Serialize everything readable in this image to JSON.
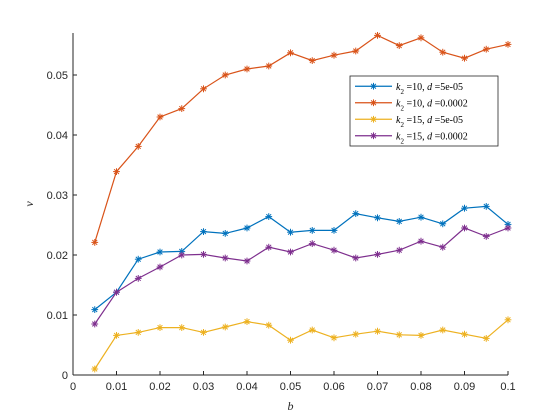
{
  "chart_data": {
    "type": "line",
    "xlabel": "b",
    "ylabel": "v",
    "xlim": [
      0,
      0.1
    ],
    "ylim": [
      0,
      0.057
    ],
    "grid": false,
    "legend_placement": "top-right",
    "x": [
      0.005,
      0.01,
      0.015,
      0.02,
      0.025,
      0.03,
      0.035,
      0.04,
      0.045,
      0.05,
      0.055,
      0.06,
      0.065,
      0.07,
      0.075,
      0.08,
      0.085,
      0.09,
      0.095,
      0.1
    ],
    "x_ticks": [
      "0",
      "0.01",
      "0.02",
      "0.03",
      "0.04",
      "0.05",
      "0.06",
      "0.07",
      "0.08",
      "0.09",
      "0.1"
    ],
    "y_ticks": [
      "0",
      "0.01",
      "0.02",
      "0.03",
      "0.04",
      "0.05"
    ],
    "series": [
      {
        "name": "k2 =10, d =5e-05",
        "legend": {
          "k": "k",
          "sub": "2",
          "mid": " =10, ",
          "d": "d",
          "rest": " =5e-05"
        },
        "color": "#0072BD",
        "values": [
          0.0109,
          0.0138,
          0.0193,
          0.0205,
          0.0206,
          0.0239,
          0.0236,
          0.0245,
          0.0264,
          0.0238,
          0.0241,
          0.0241,
          0.0269,
          0.0262,
          0.0256,
          0.0263,
          0.0252,
          0.0278,
          0.0281,
          0.0251
        ]
      },
      {
        "name": "k2 =10, d =0.0002",
        "legend": {
          "k": "k",
          "sub": "2",
          "mid": " =10, ",
          "d": "d",
          "rest": " =0.0002"
        },
        "color": "#D95319",
        "values": [
          0.0221,
          0.0339,
          0.0381,
          0.043,
          0.0444,
          0.0477,
          0.05,
          0.051,
          0.0515,
          0.0537,
          0.0524,
          0.0533,
          0.054,
          0.0566,
          0.0549,
          0.0562,
          0.0538,
          0.0528,
          0.0543,
          0.0551
        ]
      },
      {
        "name": "k2 =15, d =5e-05",
        "legend": {
          "k": "k",
          "sub": "2",
          "mid": " =15, ",
          "d": "d",
          "rest": " =5e-05"
        },
        "color": "#EDB120",
        "values": [
          0.001,
          0.0066,
          0.0071,
          0.0079,
          0.0079,
          0.0071,
          0.008,
          0.0089,
          0.0083,
          0.0058,
          0.0075,
          0.0062,
          0.0068,
          0.0073,
          0.0067,
          0.0066,
          0.0075,
          0.0068,
          0.0061,
          0.0092
        ]
      },
      {
        "name": "k2 =15, d =0.0002",
        "legend": {
          "k": "k",
          "sub": "2",
          "mid": " =15, ",
          "d": "d",
          "rest": " =0.0002"
        },
        "color": "#7E2F8E",
        "values": [
          0.0085,
          0.0138,
          0.0161,
          0.018,
          0.02,
          0.0201,
          0.0195,
          0.019,
          0.0213,
          0.0205,
          0.0219,
          0.0208,
          0.0195,
          0.0201,
          0.0208,
          0.0223,
          0.0213,
          0.0245,
          0.0231,
          0.0245
        ]
      }
    ]
  }
}
